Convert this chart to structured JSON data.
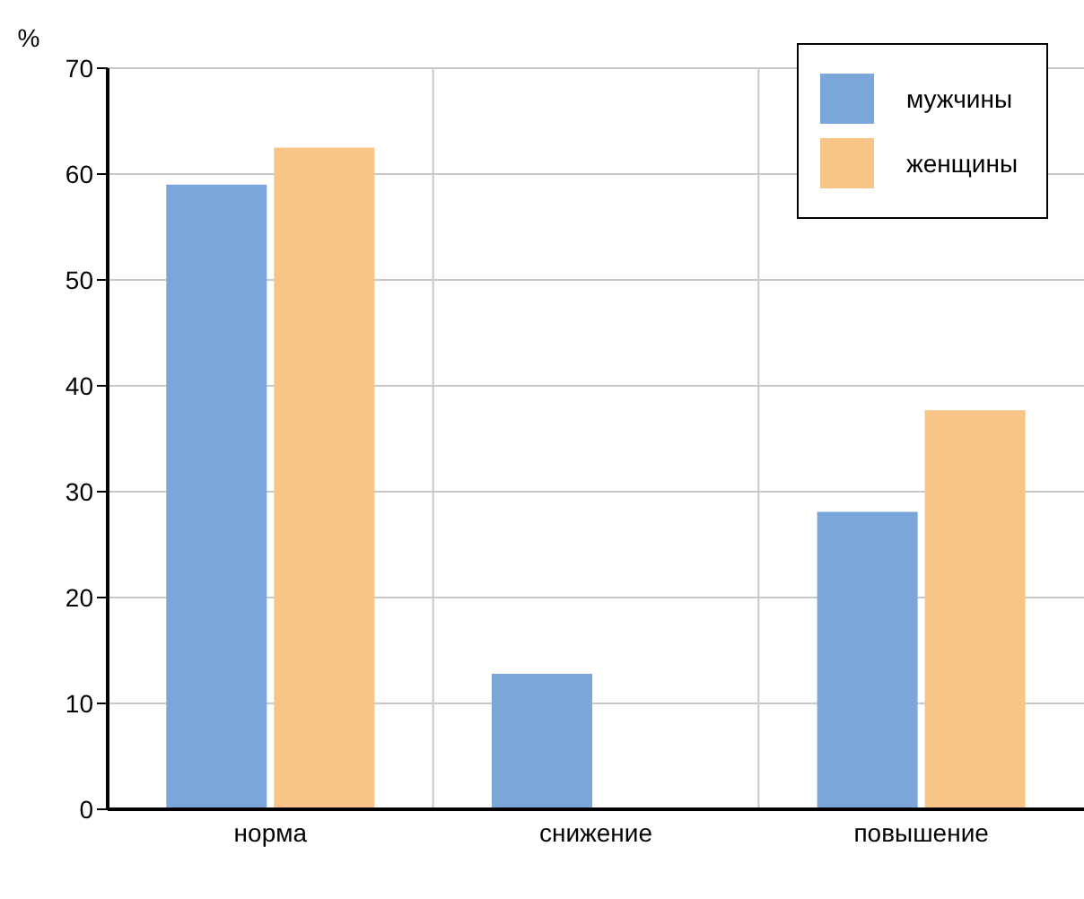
{
  "chart_data": {
    "type": "bar",
    "ylabel": "%",
    "categories": [
      "норма",
      "снижение",
      "повышение"
    ],
    "series": [
      {
        "name": "мужчины",
        "color": "#7aa6d9",
        "values": [
          59,
          12.8,
          28.1
        ]
      },
      {
        "name": "женщины",
        "color": "#f8c587",
        "values": [
          62.5,
          0,
          37.7
        ]
      }
    ],
    "ylim": [
      0,
      70
    ],
    "yticks": [
      0,
      10,
      20,
      30,
      40,
      50,
      60,
      70
    ],
    "grid": true,
    "legend": "top right"
  }
}
